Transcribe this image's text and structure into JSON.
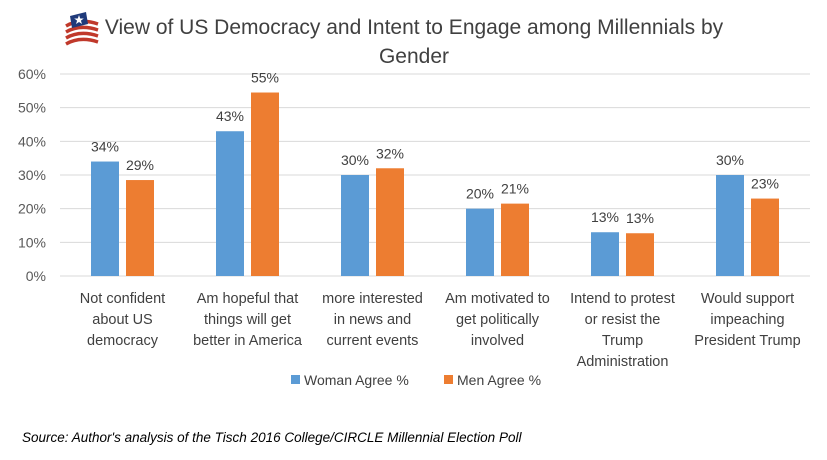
{
  "chart_data": {
    "type": "bar",
    "title": "View of US Democracy and Intent to Engage among Millennials by Gender",
    "title_lines": [
      "View of US Democracy and Intent to Engage among Millennials by",
      "Gender"
    ],
    "categories": [
      "Not confident about US democracy",
      "Am hopeful that things will get better in America",
      "more interested in news and current events",
      "Am motivated to get politically involved",
      "Intend to protest or resist the Trump Administration",
      "Would support impeaching President Trump"
    ],
    "category_lines": [
      [
        "Not confident",
        "about US",
        "democracy"
      ],
      [
        "Am hopeful that",
        "things will get",
        "better in America"
      ],
      [
        "more interested",
        "in news and",
        "current events"
      ],
      [
        "Am motivated to",
        "get politically",
        "involved"
      ],
      [
        "Intend to protest",
        "or resist the",
        "Trump",
        "Administration"
      ],
      [
        "Would support",
        "impeaching",
        "President Trump"
      ]
    ],
    "series": [
      {
        "name": "Woman Agree %",
        "color": "#5B9BD5",
        "values": [
          0.34,
          0.43,
          0.3,
          0.2,
          0.13,
          0.3
        ],
        "labels": [
          "34%",
          "43%",
          "30%",
          "20%",
          "13%",
          "30%"
        ]
      },
      {
        "name": "Men Agree %",
        "color": "#ED7D31",
        "values": [
          0.285,
          0.545,
          0.32,
          0.215,
          0.127,
          0.23
        ],
        "labels": [
          "29%",
          "55%",
          "32%",
          "21%",
          "13%",
          "23%"
        ]
      }
    ],
    "ylim": [
      0,
      0.6
    ],
    "yticks": [
      "0%",
      "10%",
      "20%",
      "30%",
      "40%",
      "50%",
      "60%"
    ],
    "xlabel": "",
    "ylabel": "",
    "grid": true,
    "legend_position": "bottom",
    "source": "Source: Author's analysis of the Tisch 2016 College/CIRCLE Millennial Election Poll"
  },
  "colors": {
    "gridline": "#D9D9D9",
    "logo_red": "#C0392B",
    "logo_blue": "#1F3A7A"
  },
  "icons": {
    "logo": "flag-logo-icon"
  }
}
